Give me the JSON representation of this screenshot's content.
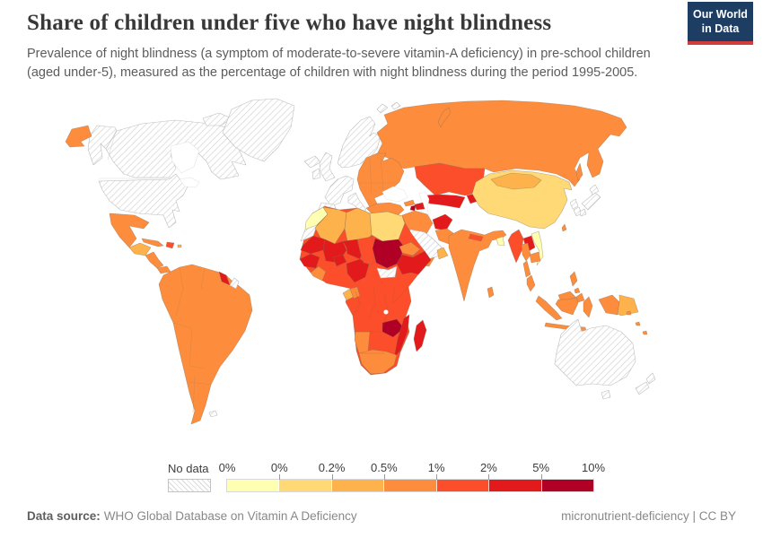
{
  "header": {
    "title": "Share of children under five who have night blindness",
    "subtitle": "Prevalence of night blindness (a symptom of moderate-to-severe vitamin-A deficiency) in pre-school children (aged under-5), measured as the percentage of children with night blindness during the period 1995-2005.",
    "logo": {
      "line1": "Our World",
      "line2": "in Data",
      "bg": "#1d3d63",
      "stripe": "#d13c3c"
    }
  },
  "legend": {
    "no_data_label": "No data",
    "tick_labels": [
      "0%",
      "0%",
      "0.2%",
      "0.5%",
      "1%",
      "2%",
      "5%",
      "10%"
    ],
    "bin_colors": [
      "#FFFFB2",
      "#FED976",
      "#FEB24C",
      "#FD8D3C",
      "#FC4E2A",
      "#E31A1C",
      "#B10026"
    ]
  },
  "footer": {
    "source_label": "Data source:",
    "source_value": "WHO Global Database on Vitamin A Deficiency",
    "right_text": "micronutrient-deficiency | CC BY"
  },
  "chart_data": {
    "type": "choropleth",
    "title": "Share of children under five who have night blindness",
    "unit": "% of children aged under 5 with night blindness",
    "period": "1995-2005",
    "legend_bins": [
      {
        "label": "0%-0%",
        "color": "#FFFFB2"
      },
      {
        "label": "0%-0.2%",
        "color": "#FED976"
      },
      {
        "label": "0.2%-0.5%",
        "color": "#FEB24C"
      },
      {
        "label": "0.5%-1%",
        "color": "#FD8D3C"
      },
      {
        "label": "1%-2%",
        "color": "#FC4E2A"
      },
      {
        "label": "2%-5%",
        "color": "#E31A1C"
      },
      {
        "label": "5%-10%",
        "color": "#B10026"
      },
      {
        "label": "No data",
        "color": "hatched"
      }
    ],
    "regions": [
      {
        "name": "United States",
        "bin": "no_data"
      },
      {
        "name": "Canada",
        "bin": "no_data"
      },
      {
        "name": "Greenland",
        "bin": "no_data"
      },
      {
        "name": "Iceland",
        "bin": "no_data"
      },
      {
        "name": "United Kingdom",
        "bin": "no_data"
      },
      {
        "name": "Ireland",
        "bin": "no_data"
      },
      {
        "name": "Scandinavia",
        "bin": "no_data"
      },
      {
        "name": "France & Germany",
        "bin": "no_data"
      },
      {
        "name": "Spain & Portugal",
        "bin": "no_data"
      },
      {
        "name": "Italy",
        "bin": "no_data"
      },
      {
        "name": "Greece",
        "bin": "no_data"
      },
      {
        "name": "Japan",
        "bin": "no_data"
      },
      {
        "name": "North Korea",
        "bin": "no_data"
      },
      {
        "name": "South Korea",
        "bin": "no_data"
      },
      {
        "name": "Saudi Arabia",
        "bin": "no_data"
      },
      {
        "name": "Australia",
        "bin": "no_data"
      },
      {
        "name": "Tasmania",
        "bin": "no_data"
      },
      {
        "name": "New Zealand",
        "bin": "no_data"
      },
      {
        "name": "South Sudan",
        "bin": "no_data"
      },
      {
        "name": "Western Sahara",
        "bin": "no_data"
      },
      {
        "name": "Suriname",
        "bin": "no_data"
      },
      {
        "name": "Svalbard",
        "bin": "no_data"
      },
      {
        "name": "Falkland Islands",
        "bin": "no_data"
      },
      {
        "name": "Morocco",
        "bin": 0
      },
      {
        "name": "Vietnam",
        "bin": 0
      },
      {
        "name": "Bangladesh",
        "bin": 0
      },
      {
        "name": "China",
        "bin": 1
      },
      {
        "name": "Egypt",
        "bin": 1
      },
      {
        "name": "Mongolia",
        "bin": 2
      },
      {
        "name": "Algeria",
        "bin": 2
      },
      {
        "name": "Libya",
        "bin": 2
      },
      {
        "name": "Oman",
        "bin": 2
      },
      {
        "name": "Papua New Guinea",
        "bin": 2
      },
      {
        "name": "Guatemala & Honduras",
        "bin": 2
      },
      {
        "name": "Gabon",
        "bin": 2
      },
      {
        "name": "Puerto Rico",
        "bin": 2
      },
      {
        "name": "Russia",
        "bin": 3
      },
      {
        "name": "Eastern Europe",
        "bin": 3
      },
      {
        "name": "Turkey",
        "bin": 3
      },
      {
        "name": "Iran",
        "bin": 3
      },
      {
        "name": "Iraq",
        "bin": 3
      },
      {
        "name": "Syria",
        "bin": 3
      },
      {
        "name": "Pakistan",
        "bin": 3
      },
      {
        "name": "India",
        "bin": 3
      },
      {
        "name": "Sri Lanka",
        "bin": 3
      },
      {
        "name": "Yemen",
        "bin": 3
      },
      {
        "name": "Georgia",
        "bin": 3
      },
      {
        "name": "Mexico",
        "bin": 3
      },
      {
        "name": "Cuba",
        "bin": 3
      },
      {
        "name": "Nicaragua & Costa Rica",
        "bin": 3
      },
      {
        "name": "Panama",
        "bin": 3
      },
      {
        "name": "South America",
        "bin": 3
      },
      {
        "name": "Thailand",
        "bin": 3
      },
      {
        "name": "Cambodia",
        "bin": 3
      },
      {
        "name": "Indonesia",
        "bin": 3
      },
      {
        "name": "Philippines",
        "bin": 3
      },
      {
        "name": "Malaysia",
        "bin": 3
      },
      {
        "name": "Taiwan",
        "bin": 3
      },
      {
        "name": "Sakhalin",
        "bin": 3
      },
      {
        "name": "Namibia",
        "bin": 3
      },
      {
        "name": "South Africa",
        "bin": 3
      },
      {
        "name": "Eritrea & Djibouti",
        "bin": 3
      },
      {
        "name": "Sierra Leone & Liberia",
        "bin": 3
      },
      {
        "name": "Congo",
        "bin": 3
      },
      {
        "name": "Pacific Islands",
        "bin": 3
      },
      {
        "name": "Kazakhstan",
        "bin": 4
      },
      {
        "name": "Nepal",
        "bin": 4
      },
      {
        "name": "Myanmar",
        "bin": 4
      },
      {
        "name": "Chad",
        "bin": 4
      },
      {
        "name": "Central & East Africa",
        "bin": 4
      },
      {
        "name": "Hispaniola",
        "bin": 4
      },
      {
        "name": "Afghanistan",
        "bin": 5
      },
      {
        "name": "Laos",
        "bin": 5
      },
      {
        "name": "Mauritania",
        "bin": 5
      },
      {
        "name": "Mali",
        "bin": 5
      },
      {
        "name": "Niger",
        "bin": 5
      },
      {
        "name": "Nigeria",
        "bin": 5
      },
      {
        "name": "Ethiopia & Somalia",
        "bin": 5
      },
      {
        "name": "Mozambique",
        "bin": 5
      },
      {
        "name": "Madagascar",
        "bin": 5
      },
      {
        "name": "Senegal & Guinea",
        "bin": 5
      },
      {
        "name": "Burkina Faso",
        "bin": 5
      },
      {
        "name": "Uzbekistan & Turkmenistan",
        "bin": 5
      },
      {
        "name": "Kyrgyzstan & Tajikistan",
        "bin": 5
      },
      {
        "name": "Guyana",
        "bin": 5
      },
      {
        "name": "Azerbaijan",
        "bin": 5
      },
      {
        "name": "Sudan",
        "bin": 6
      },
      {
        "name": "Zambia",
        "bin": 6
      },
      {
        "name": "Armenia",
        "bin": 6
      }
    ]
  }
}
